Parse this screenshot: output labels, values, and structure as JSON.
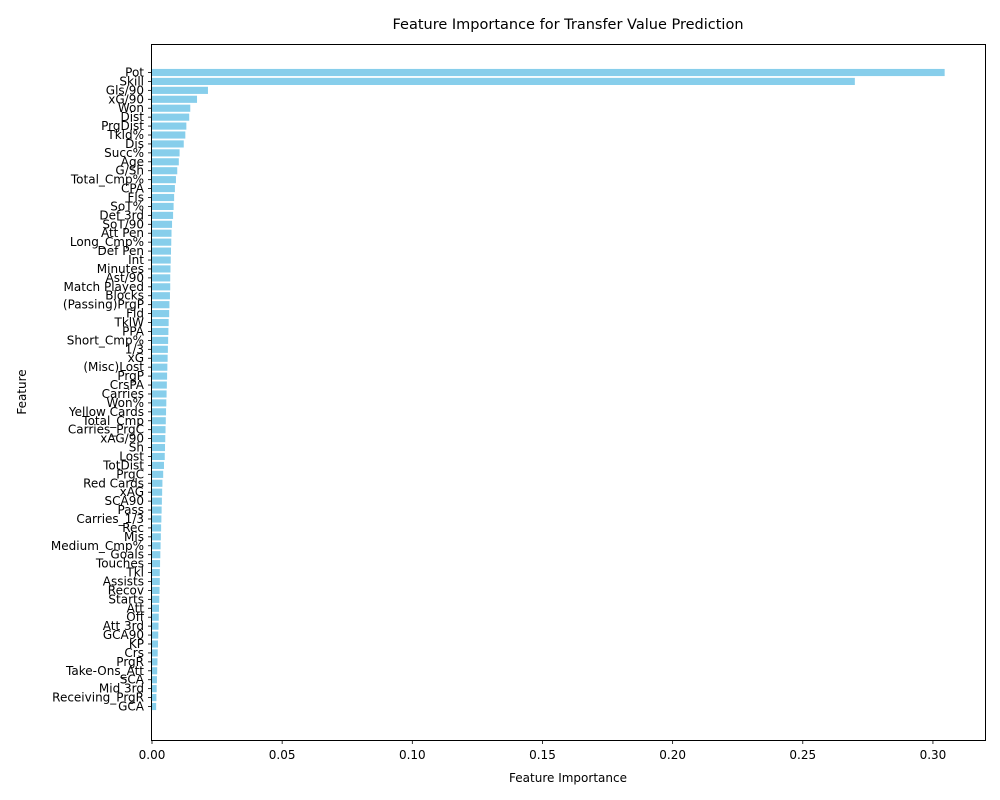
{
  "chart_data": {
    "type": "bar",
    "orientation": "horizontal",
    "title": "Feature Importance for Transfer Value Prediction",
    "xlabel": "Feature Importance",
    "ylabel": "Feature",
    "xlim": [
      0,
      0.32
    ],
    "xticks": [
      0.0,
      0.05,
      0.1,
      0.15,
      0.2,
      0.25,
      0.3
    ],
    "xtick_labels": [
      "0.00",
      "0.05",
      "0.10",
      "0.15",
      "0.20",
      "0.25",
      "0.30"
    ],
    "grid": false,
    "bar_color": "#87ceeb",
    "categories": [
      "Pot",
      "Skill",
      "Gls/90",
      "xG/90",
      "Won",
      "Dist",
      "PrgDist",
      "Tkld%",
      "Dis",
      "Succ%",
      "Age",
      "G/Sh",
      "Total_Cmp%",
      "CPA",
      "Fls",
      "SoT%",
      "Def 3rd",
      "SoT/90",
      "Att Pen",
      "Long_Cmp%",
      "Def Pen",
      "Int",
      "Minutes",
      "Ast/90",
      "Match Played",
      "Blocks",
      "(Passing)PrgP",
      "Fld",
      "TklW",
      "PPA",
      "Short_Cmp%",
      "1/3",
      "xG",
      "(Misc)Lost",
      "PrgP",
      "CrsPA",
      "Carries",
      "Won%",
      "Yellow Cards",
      "Total_Cmp",
      "Carries_PrgC",
      "xAG/90",
      "Sh",
      "Lost",
      "TotDist",
      "PrgC",
      "Red Cards",
      "xAG",
      "SCA90",
      "Pass",
      "Carries_1/3",
      "Rec",
      "Mis",
      "Medium_Cmp%",
      "Goals",
      "Touches",
      "Tkl",
      "Assists",
      "Recov",
      "Starts",
      "Att",
      "Off",
      "Att 3rd",
      "GCA90",
      "KP",
      "Crs",
      "PrgR",
      "Take-Ons_Att",
      "SCA",
      "Mid 3rd",
      "Receiving_PrgR",
      "GCA"
    ],
    "values": [
      0.3045,
      0.27,
      0.0215,
      0.0173,
      0.0147,
      0.0143,
      0.0132,
      0.0128,
      0.0122,
      0.0106,
      0.0103,
      0.0097,
      0.0092,
      0.0088,
      0.0085,
      0.0083,
      0.0081,
      0.0077,
      0.0075,
      0.0074,
      0.0073,
      0.0072,
      0.0071,
      0.007,
      0.007,
      0.0069,
      0.0067,
      0.0066,
      0.0064,
      0.0063,
      0.0062,
      0.0061,
      0.006,
      0.0059,
      0.0058,
      0.0057,
      0.0056,
      0.0055,
      0.0054,
      0.0053,
      0.0052,
      0.0051,
      0.005,
      0.0049,
      0.0046,
      0.0043,
      0.004,
      0.0039,
      0.0038,
      0.0037,
      0.0036,
      0.0035,
      0.0034,
      0.0033,
      0.0032,
      0.0031,
      0.003,
      0.003,
      0.0029,
      0.0028,
      0.0027,
      0.0026,
      0.0025,
      0.0024,
      0.0023,
      0.0022,
      0.0021,
      0.002,
      0.0019,
      0.0018,
      0.0017,
      0.0016
    ]
  }
}
